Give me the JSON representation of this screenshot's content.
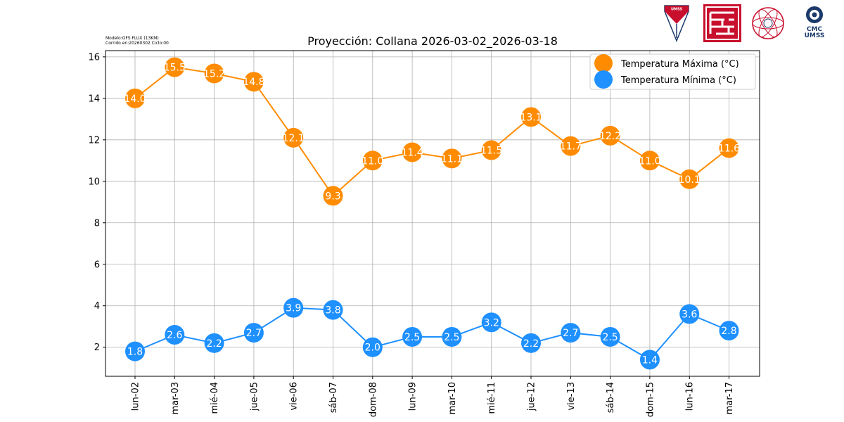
{
  "header": {
    "model_line": "Modelo:GFS FLUX (13KM)",
    "run_line": "Corrido en:20260302 Ciclo:00"
  },
  "logos": {
    "cmc_line1": "CMC",
    "cmc_line2": "UMSS",
    "umss_badge": "UMSS"
  },
  "chart_data": {
    "type": "line",
    "title": "Proyección: Collana 2026-03-02_2026-03-18",
    "xlabel": "",
    "ylabel": "",
    "categories": [
      "lun-02",
      "mar-03",
      "mié-04",
      "jue-05",
      "vie-06",
      "sáb-07",
      "dom-08",
      "lun-09",
      "mar-10",
      "mié-11",
      "jue-12",
      "vie-13",
      "sáb-14",
      "dom-15",
      "lun-16",
      "mar-17"
    ],
    "ylim": [
      0.6,
      16.3
    ],
    "yticks": [
      2,
      4,
      6,
      8,
      10,
      12,
      14,
      16
    ],
    "grid": true,
    "legend_position": "top-right",
    "series": [
      {
        "name": "Temperatura Máxima  (°C)",
        "color": "#ff8c00",
        "values": [
          14.0,
          15.5,
          15.2,
          14.8,
          12.1,
          9.3,
          11.0,
          11.4,
          11.1,
          11.5,
          13.1,
          11.7,
          12.2,
          11.0,
          10.1,
          11.6
        ]
      },
      {
        "name": "Temperatura Mínima  (°C)",
        "color": "#1e90ff",
        "values": [
          1.8,
          2.6,
          2.2,
          2.7,
          3.9,
          3.8,
          2.0,
          2.5,
          2.5,
          3.2,
          2.2,
          2.7,
          2.5,
          1.4,
          3.6,
          2.8
        ]
      }
    ]
  }
}
